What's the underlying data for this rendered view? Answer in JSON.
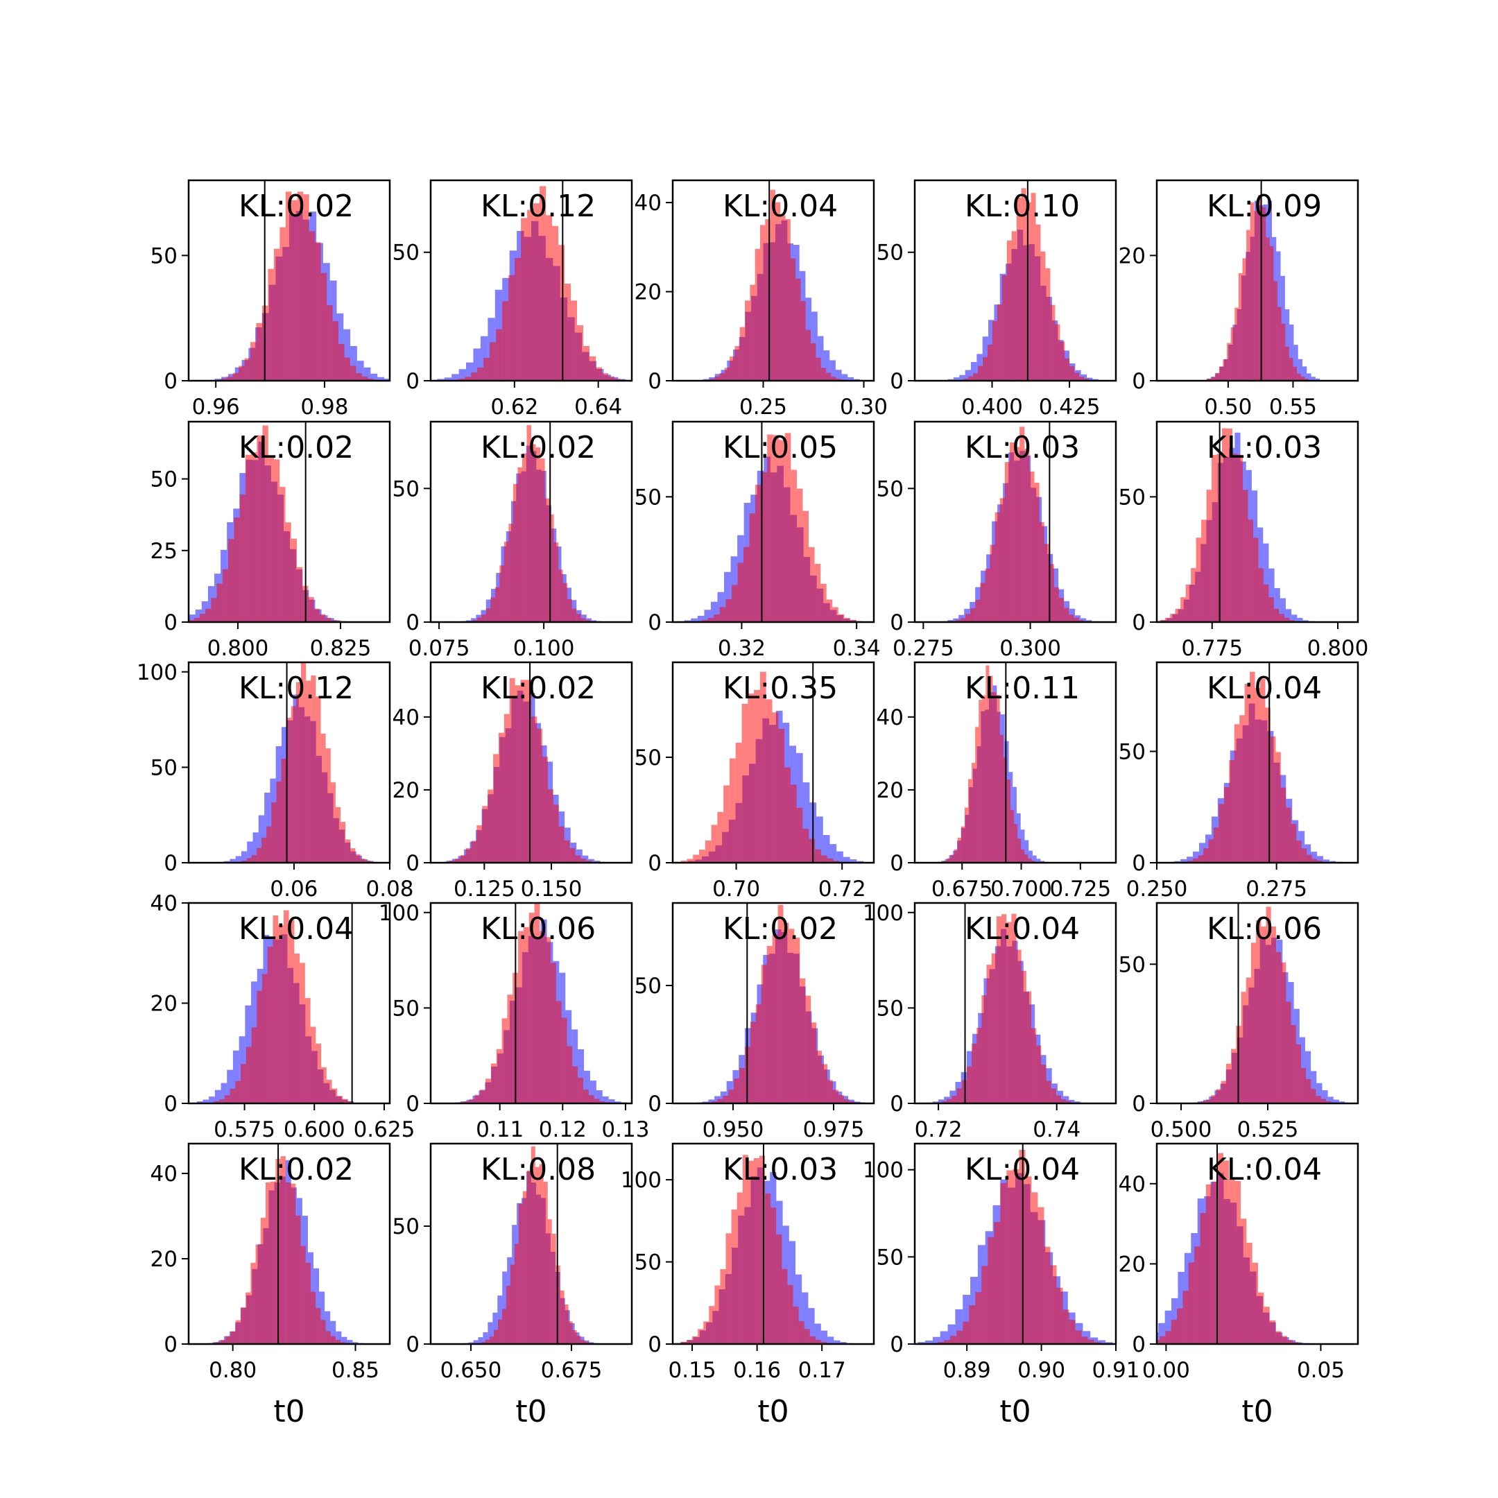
{
  "chart_data": {
    "type": "histogram-grid",
    "rows": 5,
    "cols": 5,
    "series_colors": {
      "a": "#ff0000",
      "b": "#0000ff"
    },
    "series_alpha": 0.5,
    "truth_line_color": "#000000",
    "xlabel": "t0",
    "panels": [
      {
        "kl": "KL:0.02",
        "xlim": [
          0.955,
          0.992
        ],
        "xticks": [
          {
            "v": 0.96,
            "t": "0.96"
          },
          {
            "v": 0.98,
            "t": "0.98"
          }
        ],
        "ylim": [
          0,
          80
        ],
        "yticks": [
          {
            "v": 0,
            "t": "0"
          },
          {
            "v": 50,
            "t": "50"
          }
        ],
        "truth": 0.969,
        "red": {
          "mean": 0.975,
          "sd": 0.0045,
          "peak": 76
        },
        "blue": {
          "mean": 0.976,
          "sd": 0.0052,
          "peak": 68
        }
      },
      {
        "kl": "KL:0.12",
        "xlim": [
          0.6,
          0.648
        ],
        "xticks": [
          {
            "v": 0.62,
            "t": "0.62"
          },
          {
            "v": 0.64,
            "t": "0.64"
          }
        ],
        "ylim": [
          0,
          78
        ],
        "yticks": [
          {
            "v": 0,
            "t": "0"
          },
          {
            "v": 50,
            "t": "50"
          }
        ],
        "truth": 0.6315,
        "red": {
          "mean": 0.626,
          "sd": 0.0062,
          "peak": 72
        },
        "blue": {
          "mean": 0.624,
          "sd": 0.0072,
          "peak": 60
        }
      },
      {
        "kl": "KL:0.04",
        "xlim": [
          0.205,
          0.305
        ],
        "xticks": [
          {
            "v": 0.25,
            "t": "0.25"
          },
          {
            "v": 0.3,
            "t": "0.30"
          }
        ],
        "ylim": [
          0,
          45
        ],
        "yticks": [
          {
            "v": 0,
            "t": "0"
          },
          {
            "v": 20,
            "t": "20"
          },
          {
            "v": 40,
            "t": "40"
          }
        ],
        "truth": 0.253,
        "red": {
          "mean": 0.256,
          "sd": 0.0105,
          "peak": 41
        },
        "blue": {
          "mean": 0.259,
          "sd": 0.0125,
          "peak": 35
        }
      },
      {
        "kl": "KL:0.10",
        "xlim": [
          0.375,
          0.44
        ],
        "xticks": [
          {
            "v": 0.4,
            "t": "0.400"
          },
          {
            "v": 0.425,
            "t": "0.425"
          }
        ],
        "ylim": [
          0,
          78
        ],
        "yticks": [
          {
            "v": 0,
            "t": "0"
          },
          {
            "v": 50,
            "t": "50"
          }
        ],
        "truth": 0.4115,
        "red": {
          "mean": 0.411,
          "sd": 0.0065,
          "peak": 74
        },
        "blue": {
          "mean": 0.41,
          "sd": 0.0078,
          "peak": 56
        }
      },
      {
        "kl": "KL:0.09",
        "xlim": [
          0.445,
          0.6
        ],
        "xticks": [
          {
            "v": 0.5,
            "t": "0.50"
          },
          {
            "v": 0.55,
            "t": "0.55"
          }
        ],
        "ylim": [
          0,
          32
        ],
        "yticks": [
          {
            "v": 0,
            "t": "0"
          },
          {
            "v": 20,
            "t": "20"
          }
        ],
        "truth": 0.5255,
        "red": {
          "mean": 0.523,
          "sd": 0.0125,
          "peak": 29
        },
        "blue": {
          "mean": 0.527,
          "sd": 0.014,
          "peak": 29
        }
      },
      {
        "kl": "KL:0.02",
        "xlim": [
          0.788,
          0.837
        ],
        "xticks": [
          {
            "v": 0.8,
            "t": "0.800"
          },
          {
            "v": 0.825,
            "t": "0.825"
          }
        ],
        "ylim": [
          0,
          70
        ],
        "yticks": [
          {
            "v": 0,
            "t": "0"
          },
          {
            "v": 25,
            "t": "25"
          },
          {
            "v": 50,
            "t": "50"
          }
        ],
        "truth": 0.8165,
        "red": {
          "mean": 0.806,
          "sd": 0.0058,
          "peak": 66
        },
        "blue": {
          "mean": 0.805,
          "sd": 0.0064,
          "peak": 60
        }
      },
      {
        "kl": "KL:0.02",
        "xlim": [
          0.073,
          0.121
        ],
        "xticks": [
          {
            "v": 0.075,
            "t": "0.075"
          },
          {
            "v": 0.1,
            "t": "0.100"
          }
        ],
        "ylim": [
          0,
          75
        ],
        "yticks": [
          {
            "v": 0,
            "t": "0"
          },
          {
            "v": 50,
            "t": "50"
          }
        ],
        "truth": 0.1015,
        "red": {
          "mean": 0.097,
          "sd": 0.0045,
          "peak": 70
        },
        "blue": {
          "mean": 0.097,
          "sd": 0.005,
          "peak": 64
        }
      },
      {
        "kl": "KL:0.05",
        "xlim": [
          0.308,
          0.343
        ],
        "xticks": [
          {
            "v": 0.32,
            "t": "0.32"
          },
          {
            "v": 0.34,
            "t": "0.34"
          }
        ],
        "ylim": [
          0,
          80
        ],
        "yticks": [
          {
            "v": 0,
            "t": "0"
          },
          {
            "v": 50,
            "t": "50"
          }
        ],
        "truth": 0.3235,
        "red": {
          "mean": 0.3265,
          "sd": 0.0043,
          "peak": 76
        },
        "blue": {
          "mean": 0.325,
          "sd": 0.0048,
          "peak": 64
        }
      },
      {
        "kl": "KL:0.03",
        "xlim": [
          0.273,
          0.32
        ],
        "xticks": [
          {
            "v": 0.275,
            "t": "0.275"
          },
          {
            "v": 0.3,
            "t": "0.300"
          }
        ],
        "ylim": [
          0,
          75
        ],
        "yticks": [
          {
            "v": 0,
            "t": "0"
          },
          {
            "v": 50,
            "t": "50"
          }
        ],
        "truth": 0.3045,
        "red": {
          "mean": 0.2975,
          "sd": 0.0048,
          "peak": 70
        },
        "blue": {
          "mean": 0.2975,
          "sd": 0.0054,
          "peak": 64
        }
      },
      {
        "kl": "KL:0.03",
        "xlim": [
          0.764,
          0.804
        ],
        "xticks": [
          {
            "v": 0.775,
            "t": "0.775"
          },
          {
            "v": 0.8,
            "t": "0.800"
          }
        ],
        "ylim": [
          0,
          80
        ],
        "yticks": [
          {
            "v": 0,
            "t": "0"
          },
          {
            "v": 50,
            "t": "50"
          }
        ],
        "truth": 0.7765,
        "red": {
          "mean": 0.778,
          "sd": 0.0043,
          "peak": 76
        },
        "blue": {
          "mean": 0.7795,
          "sd": 0.0047,
          "peak": 72
        }
      },
      {
        "kl": "KL:0.12",
        "xlim": [
          0.038,
          0.08
        ],
        "xticks": [
          {
            "v": 0.06,
            "t": "0.06"
          },
          {
            "v": 0.08,
            "t": "0.08"
          }
        ],
        "ylim": [
          0,
          105
        ],
        "yticks": [
          {
            "v": 0,
            "t": "0"
          },
          {
            "v": 50,
            "t": "50"
          },
          {
            "v": 100,
            "t": "100"
          }
        ],
        "truth": 0.0585,
        "red": {
          "mean": 0.0625,
          "sd": 0.0043,
          "peak": 102
        },
        "blue": {
          "mean": 0.061,
          "sd": 0.005,
          "peak": 84
        }
      },
      {
        "kl": "KL:0.02",
        "xlim": [
          0.105,
          0.18
        ],
        "xticks": [
          {
            "v": 0.125,
            "t": "0.125"
          },
          {
            "v": 0.15,
            "t": "0.150"
          }
        ],
        "ylim": [
          0,
          55
        ],
        "yticks": [
          {
            "v": 0,
            "t": "0"
          },
          {
            "v": 20,
            "t": "20"
          },
          {
            "v": 40,
            "t": "40"
          }
        ],
        "truth": 0.142,
        "red": {
          "mean": 0.1385,
          "sd": 0.0085,
          "peak": 51
        },
        "blue": {
          "mean": 0.1395,
          "sd": 0.0092,
          "peak": 47
        }
      },
      {
        "kl": "KL:0.35",
        "xlim": [
          0.688,
          0.726
        ],
        "xticks": [
          {
            "v": 0.7,
            "t": "0.70"
          },
          {
            "v": 0.72,
            "t": "0.72"
          }
        ],
        "ylim": [
          0,
          95
        ],
        "yticks": [
          {
            "v": 0,
            "t": "0"
          },
          {
            "v": 50,
            "t": "50"
          }
        ],
        "truth": 0.7145,
        "red": {
          "mean": 0.7045,
          "sd": 0.0048,
          "peak": 86
        },
        "blue": {
          "mean": 0.7075,
          "sd": 0.0053,
          "peak": 70
        }
      },
      {
        "kl": "KL:0.11",
        "xlim": [
          0.655,
          0.74
        ],
        "xticks": [
          {
            "v": 0.675,
            "t": "0.675"
          },
          {
            "v": 0.7,
            "t": "0.700"
          },
          {
            "v": 0.725,
            "t": "0.725"
          }
        ],
        "ylim": [
          0,
          55
        ],
        "yticks": [
          {
            "v": 0,
            "t": "0"
          },
          {
            "v": 20,
            "t": "20"
          },
          {
            "v": 40,
            "t": "40"
          }
        ],
        "truth": 0.6935,
        "red": {
          "mean": 0.6865,
          "sd": 0.0062,
          "peak": 52
        },
        "blue": {
          "mean": 0.688,
          "sd": 0.007,
          "peak": 47
        }
      },
      {
        "kl": "KL:0.04",
        "xlim": [
          0.25,
          0.292
        ],
        "xticks": [
          {
            "v": 0.25,
            "t": "0.250"
          },
          {
            "v": 0.275,
            "t": "0.275"
          }
        ],
        "ylim": [
          0,
          90
        ],
        "yticks": [
          {
            "v": 0,
            "t": "0"
          },
          {
            "v": 50,
            "t": "50"
          }
        ],
        "truth": 0.2735,
        "red": {
          "mean": 0.2705,
          "sd": 0.0045,
          "peak": 84
        },
        "blue": {
          "mean": 0.2705,
          "sd": 0.0054,
          "peak": 68
        }
      },
      {
        "kl": "KL:0.04",
        "xlim": [
          0.555,
          0.627
        ],
        "xticks": [
          {
            "v": 0.575,
            "t": "0.575"
          },
          {
            "v": 0.6,
            "t": "0.600"
          },
          {
            "v": 0.625,
            "t": "0.625"
          }
        ],
        "ylim": [
          0,
          40
        ],
        "yticks": [
          {
            "v": 0,
            "t": "0"
          },
          {
            "v": 20,
            "t": "20"
          },
          {
            "v": 40,
            "t": "40"
          }
        ],
        "truth": 0.6135,
        "red": {
          "mean": 0.589,
          "sd": 0.008,
          "peak": 38
        },
        "blue": {
          "mean": 0.586,
          "sd": 0.009,
          "peak": 34
        }
      },
      {
        "kl": "KL:0.06",
        "xlim": [
          0.099,
          0.131
        ],
        "xticks": [
          {
            "v": 0.11,
            "t": "0.11"
          },
          {
            "v": 0.12,
            "t": "0.12"
          },
          {
            "v": 0.13,
            "t": "0.13"
          }
        ],
        "ylim": [
          0,
          105
        ],
        "yticks": [
          {
            "v": 0,
            "t": "0"
          },
          {
            "v": 50,
            "t": "50"
          },
          {
            "v": 100,
            "t": "100"
          }
        ],
        "truth": 0.1125,
        "red": {
          "mean": 0.1155,
          "sd": 0.0036,
          "peak": 102
        },
        "blue": {
          "mean": 0.1165,
          "sd": 0.0041,
          "peak": 92
        }
      },
      {
        "kl": "KL:0.02",
        "xlim": [
          0.935,
          0.985
        ],
        "xticks": [
          {
            "v": 0.95,
            "t": "0.950"
          },
          {
            "v": 0.975,
            "t": "0.975"
          }
        ],
        "ylim": [
          0,
          85
        ],
        "yticks": [
          {
            "v": 0,
            "t": "0"
          },
          {
            "v": 50,
            "t": "50"
          }
        ],
        "truth": 0.9535,
        "red": {
          "mean": 0.9625,
          "sd": 0.0057,
          "peak": 80
        },
        "blue": {
          "mean": 0.962,
          "sd": 0.0063,
          "peak": 72
        }
      },
      {
        "kl": "KL:0.04",
        "xlim": [
          0.716,
          0.75
        ],
        "xticks": [
          {
            "v": 0.72,
            "t": "0.72"
          },
          {
            "v": 0.74,
            "t": "0.74"
          }
        ],
        "ylim": [
          0,
          105
        ],
        "yticks": [
          {
            "v": 0,
            "t": "0"
          },
          {
            "v": 50,
            "t": "50"
          },
          {
            "v": 100,
            "t": "100"
          }
        ],
        "truth": 0.7245,
        "red": {
          "mean": 0.7315,
          "sd": 0.0035,
          "peak": 100
        },
        "blue": {
          "mean": 0.7315,
          "sd": 0.004,
          "peak": 88
        }
      },
      {
        "kl": "KL:0.06",
        "xlim": [
          0.493,
          0.551
        ],
        "xticks": [
          {
            "v": 0.5,
            "t": "0.500"
          },
          {
            "v": 0.525,
            "t": "0.525"
          }
        ],
        "ylim": [
          0,
          72
        ],
        "yticks": [
          {
            "v": 0,
            "t": "0"
          },
          {
            "v": 50,
            "t": "50"
          }
        ],
        "truth": 0.5165,
        "red": {
          "mean": 0.5245,
          "sd": 0.006,
          "peak": 68
        },
        "blue": {
          "mean": 0.526,
          "sd": 0.0068,
          "peak": 60
        }
      },
      {
        "kl": "KL:0.02",
        "xlim": [
          0.782,
          0.864
        ],
        "xticks": [
          {
            "v": 0.8,
            "t": "0.80"
          },
          {
            "v": 0.85,
            "t": "0.85"
          }
        ],
        "ylim": [
          0,
          47
        ],
        "yticks": [
          {
            "v": 0,
            "t": "0"
          },
          {
            "v": 20,
            "t": "20"
          },
          {
            "v": 40,
            "t": "40"
          }
        ],
        "truth": 0.8185,
        "red": {
          "mean": 0.8195,
          "sd": 0.0085,
          "peak": 43
        },
        "blue": {
          "mean": 0.8215,
          "sd": 0.0095,
          "peak": 41
        }
      },
      {
        "kl": "KL:0.08",
        "xlim": [
          0.64,
          0.69
        ],
        "xticks": [
          {
            "v": 0.65,
            "t": "0.650"
          },
          {
            "v": 0.675,
            "t": "0.675"
          }
        ],
        "ylim": [
          0,
          85
        ],
        "yticks": [
          {
            "v": 0,
            "t": "0"
          },
          {
            "v": 50,
            "t": "50"
          }
        ],
        "truth": 0.6715,
        "red": {
          "mean": 0.666,
          "sd": 0.0043,
          "peak": 80
        },
        "blue": {
          "mean": 0.665,
          "sd": 0.005,
          "peak": 70
        }
      },
      {
        "kl": "KL:0.03",
        "xlim": [
          0.147,
          0.178
        ],
        "xticks": [
          {
            "v": 0.15,
            "t": "0.15"
          },
          {
            "v": 0.16,
            "t": "0.16"
          },
          {
            "v": 0.17,
            "t": "0.17"
          }
        ],
        "ylim": [
          0,
          122
        ],
        "yticks": [
          {
            "v": 0,
            "t": "0"
          },
          {
            "v": 50,
            "t": "50"
          },
          {
            "v": 100,
            "t": "100"
          }
        ],
        "truth": 0.161,
        "red": {
          "mean": 0.1595,
          "sd": 0.0036,
          "peak": 116
        },
        "blue": {
          "mean": 0.161,
          "sd": 0.0041,
          "peak": 106
        }
      },
      {
        "kl": "KL:0.04",
        "xlim": [
          0.883,
          0.91
        ],
        "xticks": [
          {
            "v": 0.89,
            "t": "0.89"
          },
          {
            "v": 0.9,
            "t": "0.90"
          },
          {
            "v": 0.91,
            "t": "0.91"
          }
        ],
        "ylim": [
          0,
          115
        ],
        "yticks": [
          {
            "v": 0,
            "t": "0"
          },
          {
            "v": 50,
            "t": "50"
          },
          {
            "v": 100,
            "t": "100"
          }
        ],
        "truth": 0.8975,
        "red": {
          "mean": 0.897,
          "sd": 0.0035,
          "peak": 106
        },
        "blue": {
          "mean": 0.8965,
          "sd": 0.0042,
          "peak": 96
        }
      },
      {
        "kl": "KL:0.04",
        "xlim": [
          -0.003,
          0.062
        ],
        "xticks": [
          {
            "v": 0.0,
            "t": "0.00"
          },
          {
            "v": 0.05,
            "t": "0.05"
          }
        ],
        "ylim": [
          0,
          50
        ],
        "yticks": [
          {
            "v": 0,
            "t": "0"
          },
          {
            "v": 20,
            "t": "20"
          },
          {
            "v": 40,
            "t": "40"
          }
        ],
        "truth": 0.0165,
        "red": {
          "mean": 0.0185,
          "sd": 0.0078,
          "peak": 46
        },
        "blue": {
          "mean": 0.0165,
          "sd": 0.0088,
          "peak": 41
        }
      }
    ]
  }
}
